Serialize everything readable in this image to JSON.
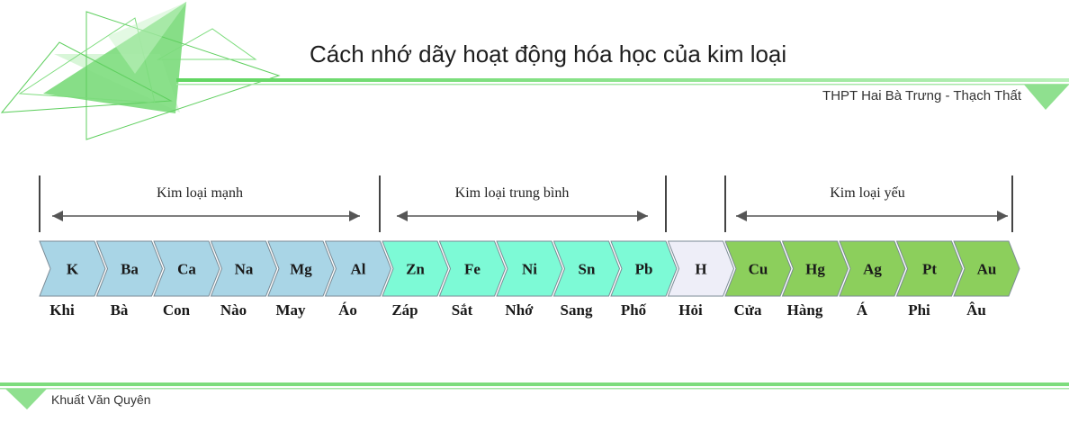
{
  "header": {
    "title": "Cách nhớ dãy hoạt động hóa học của kim loại",
    "school": "THPT Hai Bà Trưng - Thạch Thất"
  },
  "footer": {
    "author": "Khuất Văn Quyên"
  },
  "groups": [
    {
      "label": "Kim loại mạnh"
    },
    {
      "label": "Kim loại trung bình"
    },
    {
      "label": "Kim loại yếu"
    }
  ],
  "colors": {
    "strong": "#a9d5e6",
    "medium": "#7dfad6",
    "hydrogen": "#eeeef8",
    "weak": "#8ccf5c",
    "accent_green": "#7ddc7d"
  },
  "metals": [
    {
      "symbol": "K",
      "word": "Khi",
      "kind": "strong"
    },
    {
      "symbol": "Ba",
      "word": "Bà",
      "kind": "strong"
    },
    {
      "symbol": "Ca",
      "word": "Con",
      "kind": "strong"
    },
    {
      "symbol": "Na",
      "word": "Nào",
      "kind": "strong"
    },
    {
      "symbol": "Mg",
      "word": "May",
      "kind": "strong"
    },
    {
      "symbol": "Al",
      "word": "Áo",
      "kind": "strong"
    },
    {
      "symbol": "Zn",
      "word": "Záp",
      "kind": "medium"
    },
    {
      "symbol": "Fe",
      "word": "Sắt",
      "kind": "medium"
    },
    {
      "symbol": "Ni",
      "word": "Nhớ",
      "kind": "medium"
    },
    {
      "symbol": "Sn",
      "word": "Sang",
      "kind": "medium"
    },
    {
      "symbol": "Pb",
      "word": "Phố",
      "kind": "medium"
    },
    {
      "symbol": "H",
      "word": "Hỏi",
      "kind": "hydrogen"
    },
    {
      "symbol": "Cu",
      "word": "Cửa",
      "kind": "weak"
    },
    {
      "symbol": "Hg",
      "word": "Hàng",
      "kind": "weak"
    },
    {
      "symbol": "Ag",
      "word": "Á",
      "kind": "weak"
    },
    {
      "symbol": "Pt",
      "word": "Phi",
      "kind": "weak"
    },
    {
      "symbol": "Au",
      "word": "Âu",
      "kind": "weak"
    }
  ]
}
